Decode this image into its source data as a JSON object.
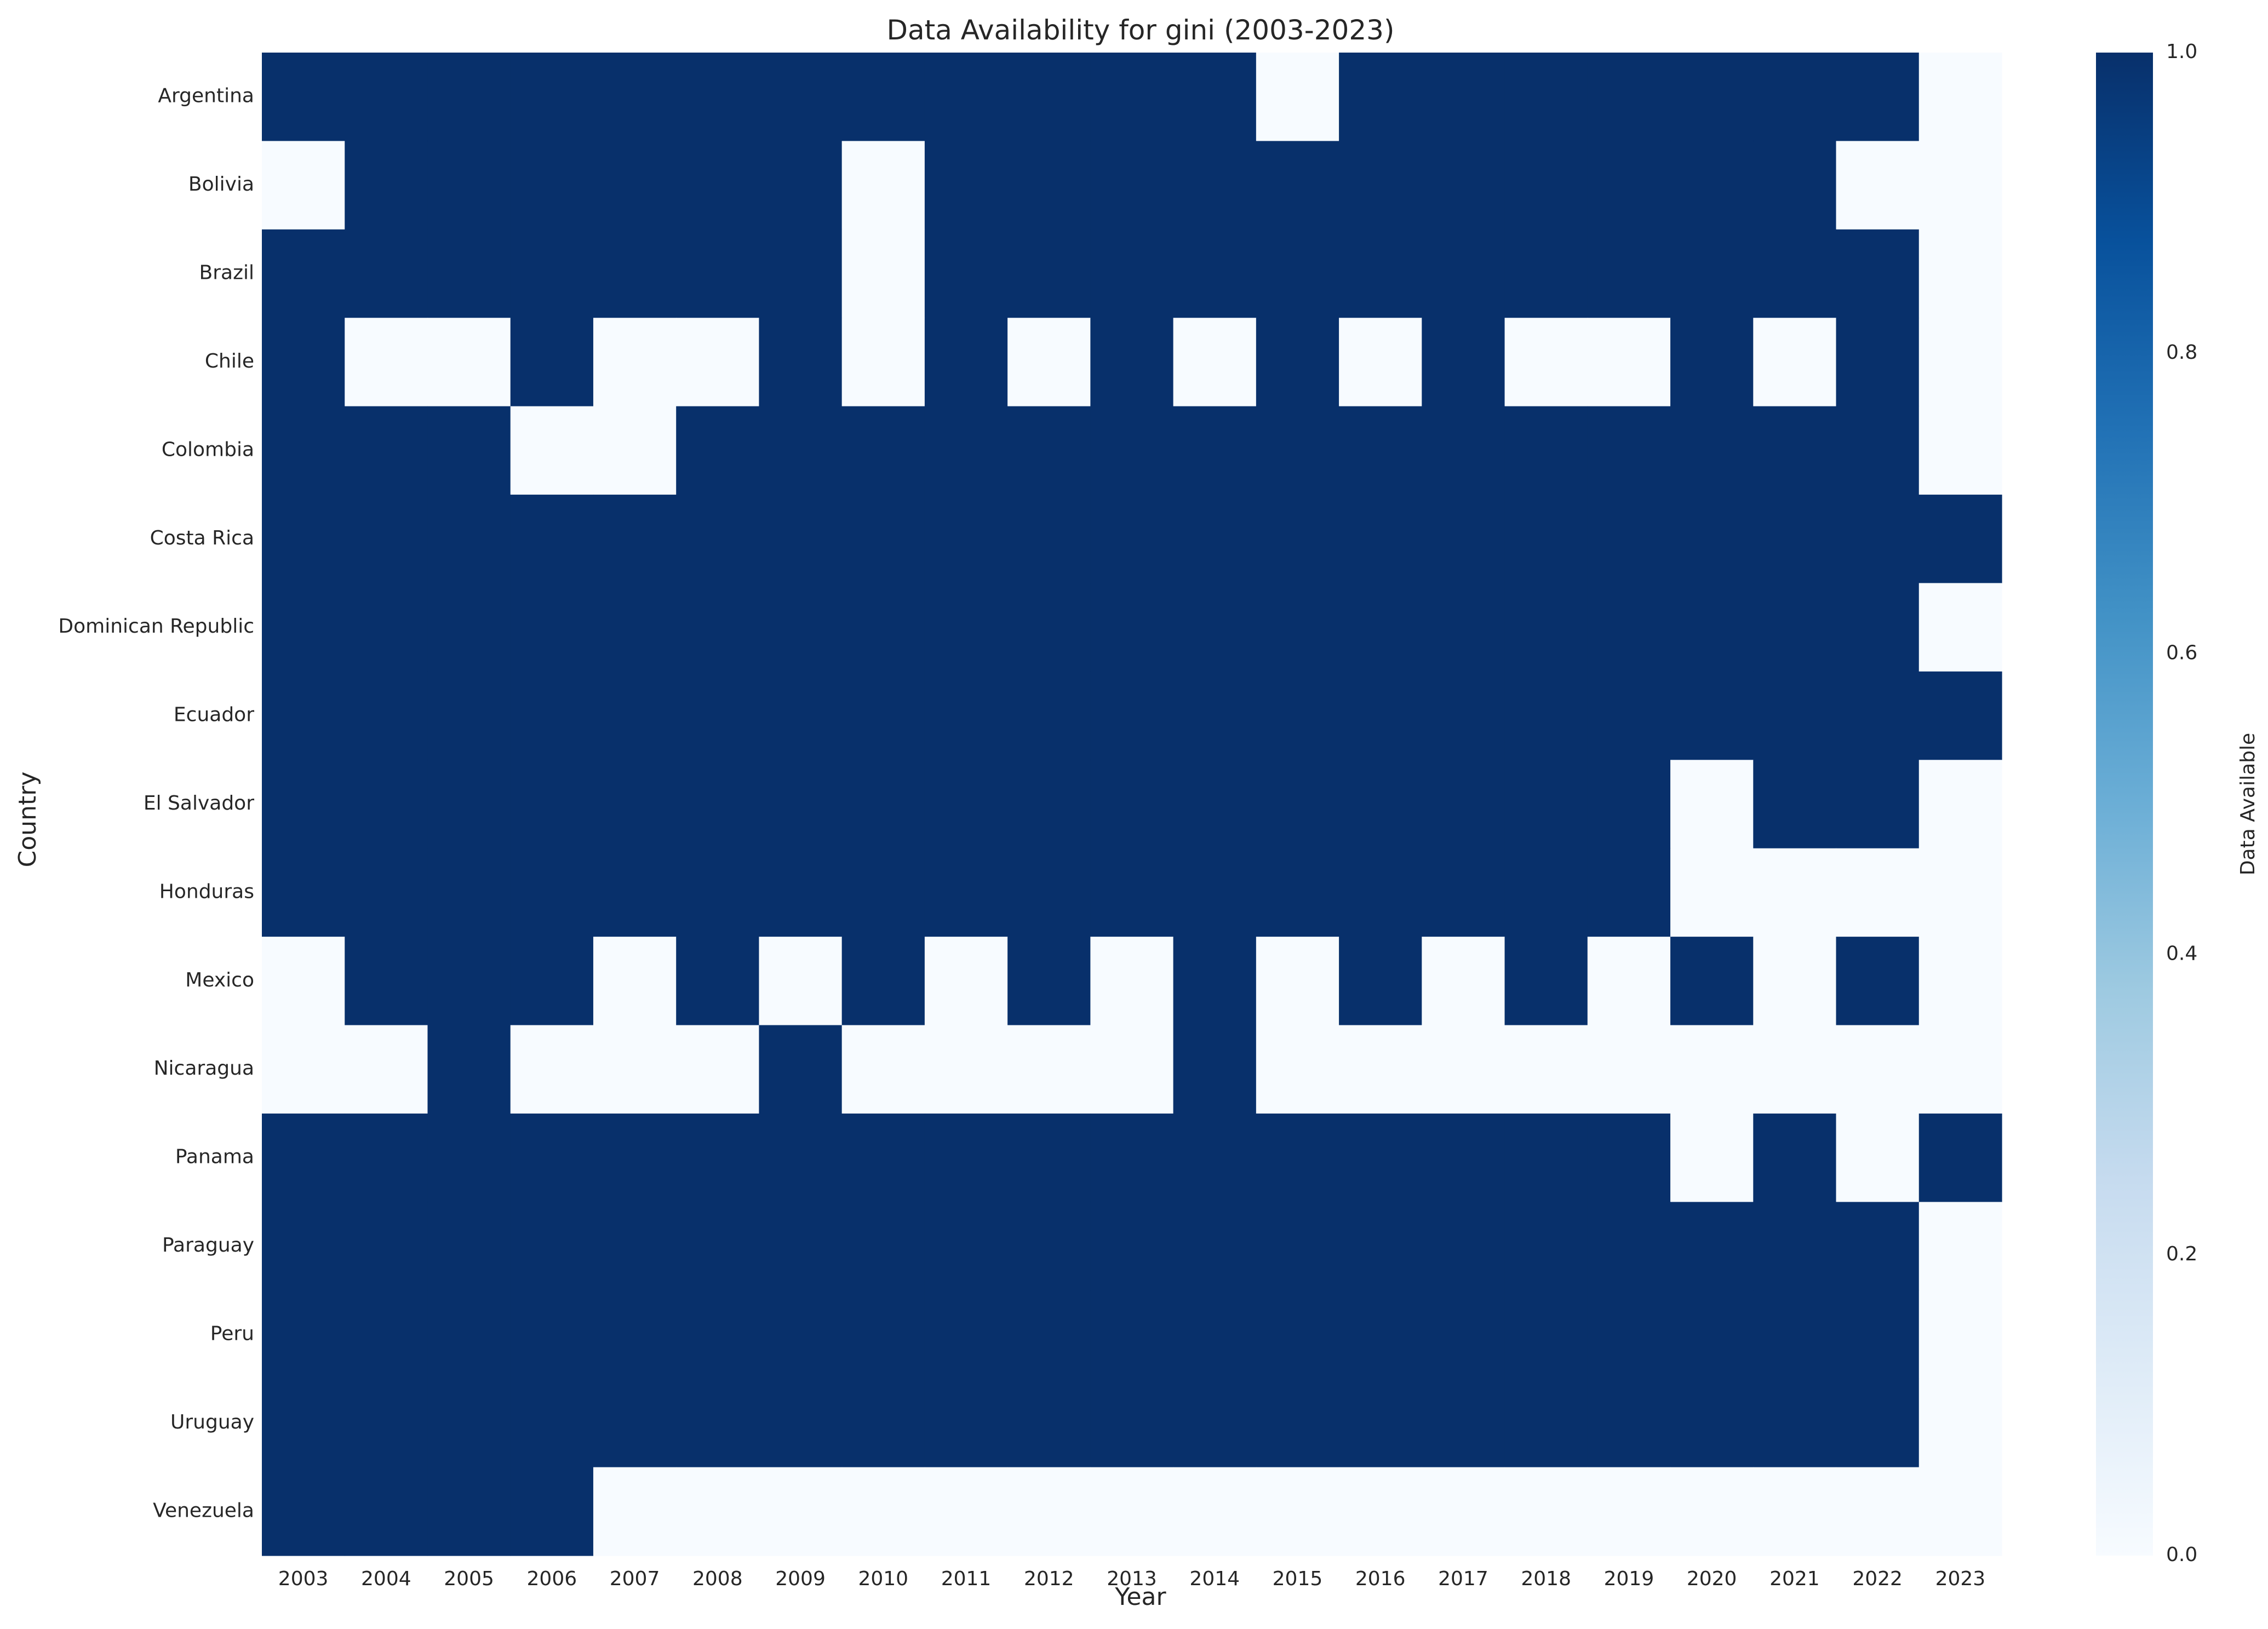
{
  "chart_data": {
    "type": "heatmap",
    "title": "Data Availability for gini (2003-2023)",
    "xlabel": "Year",
    "ylabel": "Country",
    "colorbar_label": "Data Available",
    "colorbar_ticks": [
      "0.0",
      "0.2",
      "0.4",
      "0.6",
      "0.8",
      "1.0"
    ],
    "value_range": [
      0,
      1
    ],
    "colors": {
      "low": "#f7fbff",
      "mid": "#4292c6",
      "high": "#08306b"
    },
    "grid": false,
    "legend_position": "right",
    "years": [
      "2003",
      "2004",
      "2005",
      "2006",
      "2007",
      "2008",
      "2009",
      "2010",
      "2011",
      "2012",
      "2013",
      "2014",
      "2015",
      "2016",
      "2017",
      "2018",
      "2019",
      "2020",
      "2021",
      "2022",
      "2023"
    ],
    "countries": [
      "Argentina",
      "Bolivia",
      "Brazil",
      "Chile",
      "Colombia",
      "Costa Rica",
      "Dominican Republic",
      "Ecuador",
      "El Salvador",
      "Honduras",
      "Mexico",
      "Nicaragua",
      "Panama",
      "Paraguay",
      "Peru",
      "Uruguay",
      "Venezuela"
    ],
    "values": [
      [
        1,
        1,
        1,
        1,
        1,
        1,
        1,
        1,
        1,
        1,
        1,
        1,
        0,
        1,
        1,
        1,
        1,
        1,
        1,
        1,
        0
      ],
      [
        0,
        1,
        1,
        1,
        1,
        1,
        1,
        0,
        1,
        1,
        1,
        1,
        1,
        1,
        1,
        1,
        1,
        1,
        1,
        0,
        0
      ],
      [
        1,
        1,
        1,
        1,
        1,
        1,
        1,
        0,
        1,
        1,
        1,
        1,
        1,
        1,
        1,
        1,
        1,
        1,
        1,
        1,
        0
      ],
      [
        1,
        0,
        0,
        1,
        0,
        0,
        1,
        0,
        1,
        0,
        1,
        0,
        1,
        0,
        1,
        0,
        0,
        1,
        0,
        1,
        0
      ],
      [
        1,
        1,
        1,
        0,
        0,
        1,
        1,
        1,
        1,
        1,
        1,
        1,
        1,
        1,
        1,
        1,
        1,
        1,
        1,
        1,
        0
      ],
      [
        1,
        1,
        1,
        1,
        1,
        1,
        1,
        1,
        1,
        1,
        1,
        1,
        1,
        1,
        1,
        1,
        1,
        1,
        1,
        1,
        1
      ],
      [
        1,
        1,
        1,
        1,
        1,
        1,
        1,
        1,
        1,
        1,
        1,
        1,
        1,
        1,
        1,
        1,
        1,
        1,
        1,
        1,
        0
      ],
      [
        1,
        1,
        1,
        1,
        1,
        1,
        1,
        1,
        1,
        1,
        1,
        1,
        1,
        1,
        1,
        1,
        1,
        1,
        1,
        1,
        1
      ],
      [
        1,
        1,
        1,
        1,
        1,
        1,
        1,
        1,
        1,
        1,
        1,
        1,
        1,
        1,
        1,
        1,
        1,
        0,
        1,
        1,
        0
      ],
      [
        1,
        1,
        1,
        1,
        1,
        1,
        1,
        1,
        1,
        1,
        1,
        1,
        1,
        1,
        1,
        1,
        1,
        0,
        0,
        0,
        0
      ],
      [
        0,
        1,
        1,
        1,
        0,
        1,
        0,
        1,
        0,
        1,
        0,
        1,
        0,
        1,
        0,
        1,
        0,
        1,
        0,
        1,
        0
      ],
      [
        0,
        0,
        1,
        0,
        0,
        0,
        1,
        0,
        0,
        0,
        0,
        1,
        0,
        0,
        0,
        0,
        0,
        0,
        0,
        0,
        0
      ],
      [
        1,
        1,
        1,
        1,
        1,
        1,
        1,
        1,
        1,
        1,
        1,
        1,
        1,
        1,
        1,
        1,
        1,
        0,
        1,
        0,
        1
      ],
      [
        1,
        1,
        1,
        1,
        1,
        1,
        1,
        1,
        1,
        1,
        1,
        1,
        1,
        1,
        1,
        1,
        1,
        1,
        1,
        1,
        0
      ],
      [
        1,
        1,
        1,
        1,
        1,
        1,
        1,
        1,
        1,
        1,
        1,
        1,
        1,
        1,
        1,
        1,
        1,
        1,
        1,
        1,
        0
      ],
      [
        1,
        1,
        1,
        1,
        1,
        1,
        1,
        1,
        1,
        1,
        1,
        1,
        1,
        1,
        1,
        1,
        1,
        1,
        1,
        1,
        0
      ],
      [
        1,
        1,
        1,
        1,
        0,
        0,
        0,
        0,
        0,
        0,
        0,
        0,
        0,
        0,
        0,
        0,
        0,
        0,
        0,
        0,
        0
      ]
    ]
  }
}
